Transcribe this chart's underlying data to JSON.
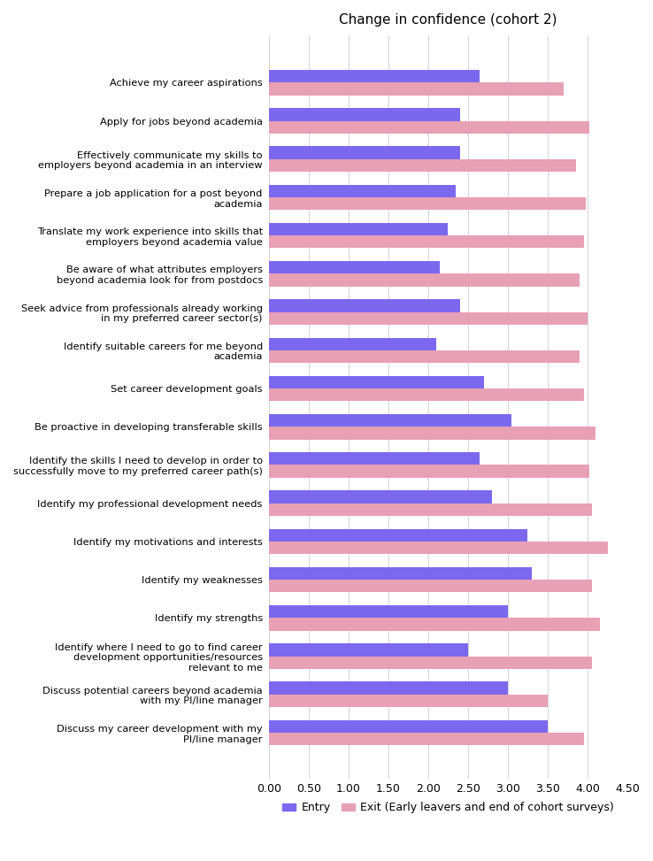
{
  "title": "Change in confidence (cohort 2)",
  "categories": [
    "Achieve my career aspirations",
    "Apply for jobs beyond academia",
    "Effectively communicate my skills to\nemployers beyond academia in an interview",
    "Prepare a job application for a post beyond\nacademia",
    "Translate my work experience into skills that\nemployers beyond academia value",
    "Be aware of what attributes employers\nbeyond academia look for from postdocs",
    "Seek advice from professionals already working\nin my preferred career sector(s)",
    "Identify suitable careers for me beyond\nacademia",
    "Set career development goals",
    "Be proactive in developing transferable skills",
    "Identify the skills I need to develop in order to\nsuccessfully move to my preferred career path(s)",
    "Identify my professional development needs",
    "Identify my motivations and interests",
    "Identify my weaknesses",
    "Identify my strengths",
    "Identify where I need to go to find career\ndevelopment opportunities/resources\nrelevant to me",
    "Discuss potential careers beyond academia\nwith my PI/line manager",
    "Discuss my career development with my\nPI/line manager"
  ],
  "entry_values": [
    2.65,
    2.4,
    2.4,
    2.35,
    2.25,
    2.15,
    2.4,
    2.1,
    2.7,
    3.05,
    2.65,
    2.8,
    3.25,
    3.3,
    3.0,
    2.5,
    3.0,
    3.5
  ],
  "exit_values": [
    3.7,
    4.02,
    3.85,
    3.98,
    3.95,
    3.9,
    4.0,
    3.9,
    3.95,
    4.1,
    4.02,
    4.05,
    4.25,
    4.05,
    4.15,
    4.05,
    3.5,
    3.95
  ],
  "entry_color": "#7B68EE",
  "exit_color": "#E8A0B4",
  "xlim": [
    0,
    4.5
  ],
  "xticks": [
    0.0,
    0.5,
    1.0,
    1.5,
    2.0,
    2.5,
    3.0,
    3.5,
    4.0,
    4.5
  ],
  "xtick_labels": [
    "0.00",
    "0.50",
    "1.00",
    "1.50",
    "2.00",
    "2.50",
    "3.00",
    "3.50",
    "4.00",
    "4.50"
  ],
  "legend_entry": "Entry",
  "legend_exit": "Exit (Early leavers and end of cohort surveys)",
  "background_color": "#ffffff",
  "title_fontsize": 11,
  "label_fontsize": 8.2,
  "tick_fontsize": 9
}
